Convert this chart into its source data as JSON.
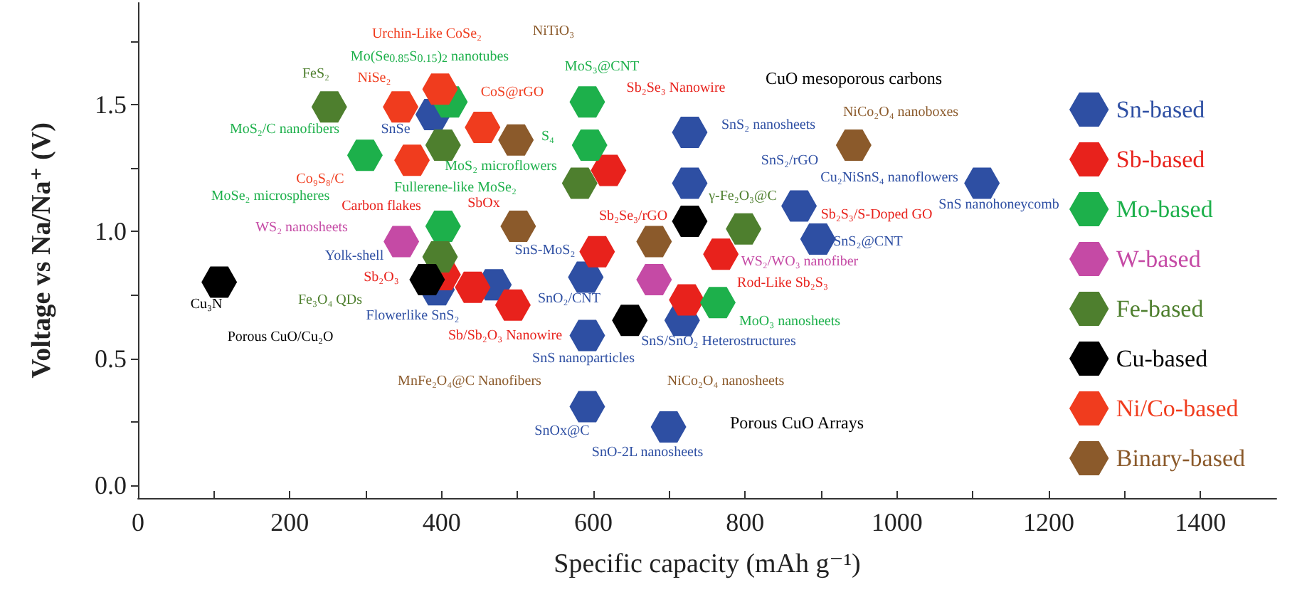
{
  "chart_data": {
    "type": "scatter",
    "xlabel": "Specific capacity (mAh g⁻¹)",
    "ylabel": "Voltage vs Na/Na⁺ (V)",
    "xlim": [
      0,
      1500
    ],
    "ylim": [
      -0.05,
      1.9
    ],
    "xticks": [
      0,
      {
        "value": 100,
        "label": null
      },
      200,
      {
        "value": 300,
        "label": null
      },
      400,
      {
        "value": 500,
        "label": null
      },
      600,
      {
        "value": 700,
        "label": null
      },
      800,
      {
        "value": 900,
        "label": null
      },
      1000,
      {
        "value": 1100,
        "label": null
      },
      1200,
      {
        "value": 1300,
        "label": null
      },
      1400
    ],
    "yticks": [
      {
        "value": 0,
        "label": "0.0"
      },
      {
        "value": 0.25,
        "label": null
      },
      0.5,
      {
        "value": 0.75,
        "label": null
      },
      {
        "value": 1,
        "label": "1.0"
      },
      {
        "value": 1.25,
        "label": null
      },
      1.5,
      {
        "value": 1.75,
        "label": null
      }
    ],
    "grid": false,
    "legend": "right",
    "series": [
      {
        "name": "Sn-based",
        "color": "#2e4fa3",
        "x": [
          389,
          727,
          727,
          871,
          896,
          1112,
          469,
          394,
          590,
          592,
          592,
          699,
          717
        ],
        "values": [
          1.46,
          1.39,
          1.19,
          1.1,
          0.97,
          1.19,
          0.79,
          0.77,
          0.82,
          0.59,
          0.31,
          0.23,
          0.65
        ]
      },
      {
        "name": "Sb-based",
        "color": "#e8221c",
        "x": [
          620,
          605,
          402,
          494,
          723,
          441,
          768
        ],
        "values": [
          1.24,
          0.92,
          0.83,
          0.71,
          0.73,
          0.78,
          0.91
        ]
      },
      {
        "name": "Mo-based",
        "color": "#1db04b",
        "x": [
          411,
          592,
          595,
          299,
          402,
          764
        ],
        "values": [
          1.51,
          1.51,
          1.34,
          1.3,
          1.02,
          0.72
        ]
      },
      {
        "name": "W-based",
        "color": "#c54aa5",
        "x": [
          347,
          680
        ],
        "values": [
          0.96,
          0.81
        ]
      },
      {
        "name": "Fe-based",
        "color": "#4e7f2e",
        "x": [
          252,
          402,
          582,
          798,
          398
        ],
        "values": [
          1.49,
          1.34,
          1.19,
          1.01,
          0.9
        ]
      },
      {
        "name": "Cu-based",
        "color": "#000000",
        "x": [
          107,
          381,
          727,
          648
        ],
        "values": [
          0.8,
          0.81,
          1.04,
          0.65
        ]
      },
      {
        "name": "Ni/Co-based",
        "color": "#f03c1e",
        "x": [
          346,
          398,
          454,
          361
        ],
        "values": [
          1.49,
          1.56,
          1.41,
          1.28
        ]
      },
      {
        "name": "Binary-based",
        "color": "#8b5a2b",
        "x": [
          498,
          501,
          680,
          943
        ],
        "values": [
          1.36,
          1.02,
          0.96,
          1.34
        ]
      }
    ],
    "annotations": [
      "Urchin-Like CoSe₂",
      "Mo(Se$_{0.85}$S$_{0.15}$)$_{2}$ nanotubes",
      "FeS₂",
      "NiSe₂",
      "CoS@rGO",
      "SnSe",
      "MoS₂/C nanofibers",
      "Co₉S₈/C",
      "MoSe₂ microspheres",
      "MoS₂ microflowers",
      "Fullerene-like MoSe₂",
      "Carbon flakes",
      "SbOx",
      "WS₂ nanosheets",
      "Yolk-shell",
      "SnS-MoS₂",
      "Sb₂O₃",
      "Fe₃O₄ QDs",
      "Cu₃N",
      "Porous CuO/Cu₂O",
      "Flowerlike SnS₂",
      "Sb/Sb₂O₃ Nanowire",
      "MnFe₂O₄@C Nanofibers",
      "SnS nanoparticles",
      "SnO₂/CNT",
      "SnOx@C",
      "SnO-2L nanosheets",
      "Porous CuO Arrays",
      "NiCo₂O₄ nanosheets",
      "SnS/SnO₂ Heterostructures",
      "MoO₃ nanosheets",
      "Rod-Like Sb₂S₃",
      "SnS₂@CNT",
      "WS₂/WO₃ nanofiber",
      "Sb₂S₃/S-Doped GO",
      "Sb₂Se₃/rGO",
      "Cu₂NiSnS₄ nanoflowers",
      "γ-Fe₂O₃@C",
      "SnS₂/rGO",
      "SnS₂ nanosheets",
      "Sb₂Se₃ Nanowire",
      "S₄",
      "MoS₃@CNT",
      "NiTiO₃",
      "CuO mesoporous carbons",
      "NiCo₂O₄ nanoboxes",
      "SnS nanohoneycomb"
    ]
  }
}
